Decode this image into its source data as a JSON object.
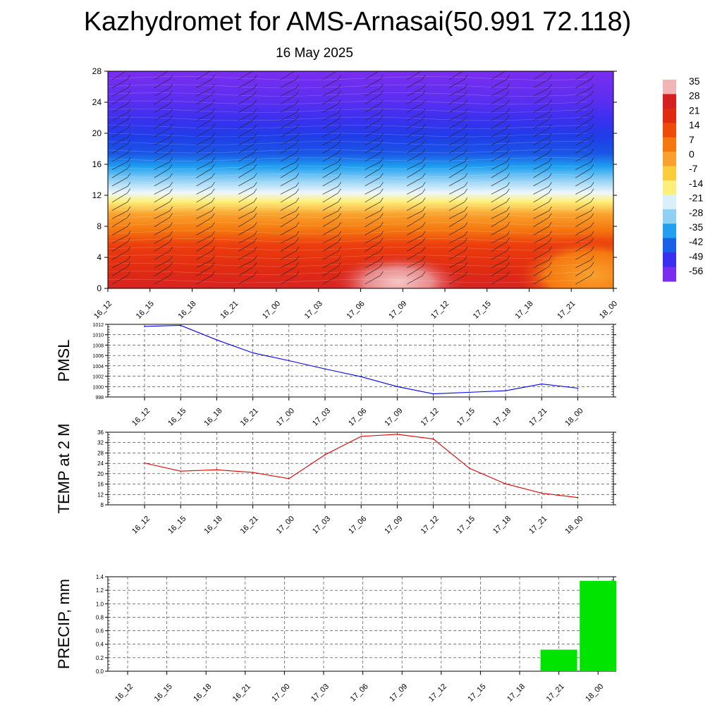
{
  "title": "Kazhydromet for AMS-Arnasai(50.991 72.118)",
  "subtitle": "16 May 2025",
  "chart_data": [
    {
      "type": "heatmap",
      "id": "cross-section",
      "x_categories": [
        "16_12",
        "16_15",
        "16_18",
        "16_21",
        "17_00",
        "17_03",
        "17_06",
        "17_09",
        "17_12",
        "17_15",
        "17_18",
        "17_21",
        "18_00"
      ],
      "y_ticks": [
        0,
        4,
        8,
        12,
        16,
        20,
        24,
        28
      ],
      "ylim": [
        0,
        28
      ],
      "colorbar_labels": [
        35,
        28,
        21,
        14,
        7,
        0,
        -7,
        -14,
        -21,
        -28,
        -35,
        -42,
        -49,
        -56
      ],
      "colorbar_colors": [
        "#f2b5b5",
        "#d62020",
        "#e02a10",
        "#ee4a0a",
        "#f5780f",
        "#f9a12c",
        "#fbcd3a",
        "#fdf07a",
        "#d9effb",
        "#8fd0f5",
        "#1fa0f0",
        "#1860e8",
        "#3a2ef0",
        "#7a2cf0"
      ],
      "wind_barbs": true,
      "grid": false
    },
    {
      "type": "line",
      "id": "pmsl",
      "ylabel": "PMSL",
      "x": [
        "16_12",
        "16_15",
        "16_18",
        "16_21",
        "17_00",
        "17_03",
        "17_06",
        "17_09",
        "17_12",
        "17_15",
        "17_18",
        "17_21",
        "18_00"
      ],
      "values": [
        1011.6,
        1011.8,
        1009.0,
        1006.5,
        1005.0,
        1003.4,
        1001.9,
        1000.0,
        998.6,
        998.9,
        999.2,
        1000.5,
        999.7
      ],
      "yticks": [
        998,
        1000,
        1002,
        1004,
        1006,
        1008,
        1010,
        1012
      ],
      "ylim": [
        998,
        1012
      ],
      "color": "#0000ff",
      "grid": true
    },
    {
      "type": "line",
      "id": "temp",
      "ylabel": "TEMP at 2 M",
      "x": [
        "16_12",
        "16_15",
        "16_18",
        "16_21",
        "17_00",
        "17_03",
        "17_06",
        "17_09",
        "17_12",
        "17_15",
        "17_18",
        "17_21",
        "18_00"
      ],
      "values": [
        24.1,
        21.0,
        21.5,
        20.5,
        18.1,
        27.3,
        34.4,
        35.2,
        33.4,
        22.1,
        16.1,
        12.5,
        10.8
      ],
      "yticks": [
        8,
        12,
        16,
        20,
        24,
        28,
        32,
        36
      ],
      "ylim": [
        8,
        36
      ],
      "color": "#e00000",
      "grid": true
    },
    {
      "type": "bar",
      "id": "precip",
      "ylabel": "PRECIP, mm",
      "categories": [
        "16_12",
        "16_15",
        "16_18",
        "16_21",
        "17_00",
        "17_03",
        "17_06",
        "17_09",
        "17_12",
        "17_15",
        "17_18",
        "17_21",
        "18_00"
      ],
      "values": [
        0,
        0,
        0,
        0,
        0,
        0,
        0,
        0,
        0,
        0,
        0,
        0.32,
        1.34
      ],
      "yticks": [
        "0.0",
        "0.2",
        "0.4",
        "0.6",
        "0.8",
        "1.0",
        "1.2",
        "1.4"
      ],
      "ylim": [
        0,
        1.4
      ],
      "color": "#00e400",
      "grid": true
    }
  ]
}
